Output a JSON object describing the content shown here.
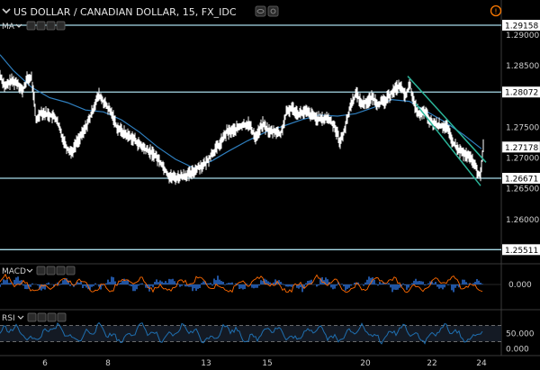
{
  "header": {
    "title": "US DOLLAR / CANADIAN DOLLAR, 15, FX_IDC",
    "alert_icon": "warning-circle-icon",
    "chevron_icon": "chevron-down-icon",
    "toolbar_icons": [
      "eye-icon",
      "settings-icon",
      "close-icon",
      "more-icon"
    ]
  },
  "colors": {
    "background": "#000000",
    "candle": "#ffffff",
    "ma": "#2f7fbf",
    "hline": "#a8dbe9",
    "channel": "#2bb59a",
    "macd_hist": "#2a6fd6",
    "macd_signal": "#ff6a00",
    "rsi": "#1f6fb0",
    "tag_bg": "#ffffff",
    "tag_text": "#000000",
    "alert": "#ff7b00"
  },
  "indicators": {
    "ma": {
      "label": "MA"
    },
    "macd": {
      "label": "MACD",
      "value": "0.000"
    },
    "rsi": {
      "label": "RSI",
      "ticks": [
        "50.000",
        "0.000"
      ]
    }
  },
  "chart_data": {
    "type": "line",
    "symbol": "US DOLLAR / CANADIAN DOLLAR",
    "interval": "15",
    "source": "FX_IDC",
    "ylim": [
      1.2534,
      1.2948
    ],
    "y_ticks": [
      "1.29000",
      "1.28500",
      "1.27500",
      "1.27000",
      "1.26500",
      "1.26000"
    ],
    "x_ticks": [
      "6",
      "8",
      "13",
      "15",
      "20",
      "22",
      "24"
    ],
    "price_levels": [
      {
        "value": 1.29158,
        "label": "1.29158"
      },
      {
        "value": 1.28072,
        "label": "1.28072"
      },
      {
        "value": 1.26671,
        "label": "1.26671"
      },
      {
        "value": 1.25511,
        "label": "1.25511"
      }
    ],
    "last_price": {
      "value": 1.27178,
      "label": "1.27178"
    },
    "price_path": [
      [
        0,
        1.2835
      ],
      [
        6,
        1.2815
      ],
      [
        12,
        1.2825
      ],
      [
        20,
        1.2822
      ],
      [
        25,
        1.2808
      ],
      [
        30,
        1.2828
      ],
      [
        35,
        1.283
      ],
      [
        38,
        1.2795
      ],
      [
        40,
        1.276
      ],
      [
        45,
        1.2775
      ],
      [
        55,
        1.277
      ],
      [
        62,
        1.2765
      ],
      [
        70,
        1.2732
      ],
      [
        75,
        1.2715
      ],
      [
        80,
        1.271
      ],
      [
        85,
        1.2725
      ],
      [
        92,
        1.274
      ],
      [
        100,
        1.2765
      ],
      [
        106,
        1.279
      ],
      [
        110,
        1.2802
      ],
      [
        118,
        1.2785
      ],
      [
        125,
        1.277
      ],
      [
        130,
        1.275
      ],
      [
        140,
        1.2738
      ],
      [
        148,
        1.2732
      ],
      [
        156,
        1.272
      ],
      [
        164,
        1.2712
      ],
      [
        172,
        1.2705
      ],
      [
        180,
        1.269
      ],
      [
        188,
        1.267
      ],
      [
        196,
        1.2668
      ],
      [
        205,
        1.2672
      ],
      [
        212,
        1.2674
      ],
      [
        220,
        1.2685
      ],
      [
        228,
        1.269
      ],
      [
        236,
        1.2708
      ],
      [
        244,
        1.2722
      ],
      [
        252,
        1.2742
      ],
      [
        260,
        1.2745
      ],
      [
        268,
        1.2752
      ],
      [
        276,
        1.2756
      ],
      [
        284,
        1.2734
      ],
      [
        292,
        1.2755
      ],
      [
        300,
        1.2742
      ],
      [
        306,
        1.2744
      ],
      [
        312,
        1.2738
      ],
      [
        318,
        1.2772
      ],
      [
        324,
        1.2782
      ],
      [
        332,
        1.2772
      ],
      [
        340,
        1.2775
      ],
      [
        348,
        1.2768
      ],
      [
        356,
        1.2762
      ],
      [
        364,
        1.2765
      ],
      [
        372,
        1.2752
      ],
      [
        378,
        1.2725
      ],
      [
        384,
        1.2752
      ],
      [
        390,
        1.2788
      ],
      [
        396,
        1.2805
      ],
      [
        402,
        1.2788
      ],
      [
        408,
        1.2792
      ],
      [
        414,
        1.2798
      ],
      [
        420,
        1.2788
      ],
      [
        428,
        1.2792
      ],
      [
        436,
        1.2808
      ],
      [
        444,
        1.2818
      ],
      [
        450,
        1.2802
      ],
      [
        456,
        1.2818
      ],
      [
        460,
        1.2788
      ],
      [
        466,
        1.277
      ],
      [
        472,
        1.2775
      ],
      [
        478,
        1.2758
      ],
      [
        484,
        1.2755
      ],
      [
        490,
        1.2752
      ],
      [
        496,
        1.2752
      ],
      [
        502,
        1.2728
      ],
      [
        508,
        1.2715
      ],
      [
        514,
        1.2708
      ],
      [
        520,
        1.2702
      ],
      [
        526,
        1.2695
      ],
      [
        530,
        1.2678
      ],
      [
        534,
        1.2672
      ],
      [
        537,
        1.2718
      ]
    ],
    "ma_path": [
      [
        0,
        1.2868
      ],
      [
        15,
        1.2842
      ],
      [
        35,
        1.2815
      ],
      [
        55,
        1.2798
      ],
      [
        75,
        1.279
      ],
      [
        95,
        1.2778
      ],
      [
        115,
        1.2775
      ],
      [
        135,
        1.2762
      ],
      [
        155,
        1.2742
      ],
      [
        175,
        1.2718
      ],
      [
        195,
        1.2698
      ],
      [
        215,
        1.2684
      ],
      [
        235,
        1.2695
      ],
      [
        255,
        1.2712
      ],
      [
        275,
        1.2728
      ],
      [
        295,
        1.2742
      ],
      [
        315,
        1.2752
      ],
      [
        335,
        1.2762
      ],
      [
        355,
        1.277
      ],
      [
        375,
        1.2768
      ],
      [
        395,
        1.2772
      ],
      [
        415,
        1.2782
      ],
      [
        435,
        1.2795
      ],
      [
        455,
        1.2792
      ],
      [
        475,
        1.2775
      ],
      [
        495,
        1.2758
      ],
      [
        515,
        1.2738
      ],
      [
        535,
        1.2715
      ]
    ],
    "channel_upper": [
      [
        453,
        1.2833
      ],
      [
        540,
        1.2693
      ]
    ],
    "channel_lower": [
      [
        462,
        1.2788
      ],
      [
        534,
        1.2655
      ]
    ],
    "macd_range": [
      -1,
      1
    ],
    "rsi_range": [
      0,
      100
    ],
    "rsi_levels": [
      70,
      30
    ]
  }
}
